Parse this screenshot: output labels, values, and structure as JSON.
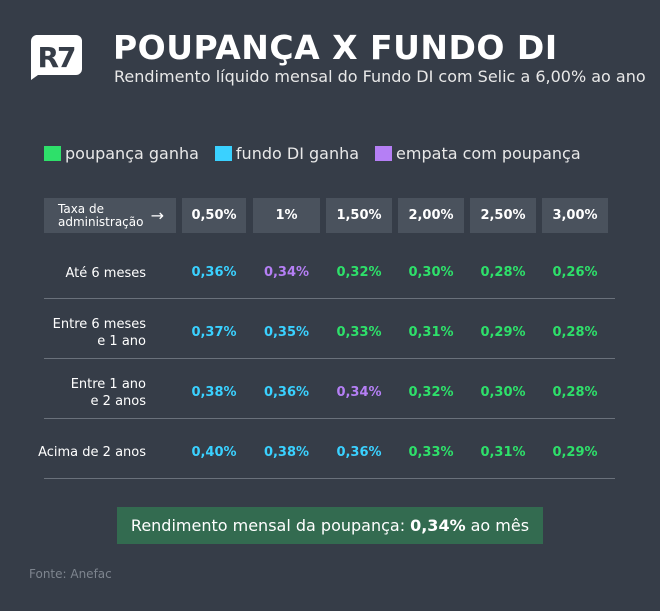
{
  "header": {
    "logo": "R7",
    "title": "POUPANÇA X FUNDO DI",
    "subtitle": "Rendimento líquido mensal do Fundo DI com Selic a 6,00% ao ano"
  },
  "legend": [
    {
      "label": "poupança ganha",
      "color": "#2ee06a"
    },
    {
      "label": "fundo DI ganha",
      "color": "#3ad1ff"
    },
    {
      "label": "empata com poupança",
      "color": "#b57ff5"
    }
  ],
  "table": {
    "corner_label": "Taxa de administração",
    "arrow": "→",
    "columns": [
      "0,50%",
      "1%",
      "1,50%",
      "2,00%",
      "2,50%",
      "3,00%"
    ],
    "rows": [
      {
        "label": "Até 6 meses",
        "cells": [
          {
            "v": "0,36%",
            "s": "fundo"
          },
          {
            "v": "0,34%",
            "s": "empata"
          },
          {
            "v": "0,32%",
            "s": "poupanca"
          },
          {
            "v": "0,30%",
            "s": "poupanca"
          },
          {
            "v": "0,28%",
            "s": "poupanca"
          },
          {
            "v": "0,26%",
            "s": "poupanca"
          }
        ]
      },
      {
        "label": "Entre 6 meses e 1 ano",
        "cells": [
          {
            "v": "0,37%",
            "s": "fundo"
          },
          {
            "v": "0,35%",
            "s": "fundo"
          },
          {
            "v": "0,33%",
            "s": "poupanca"
          },
          {
            "v": "0,31%",
            "s": "poupanca"
          },
          {
            "v": "0,29%",
            "s": "poupanca"
          },
          {
            "v": "0,28%",
            "s": "poupanca"
          }
        ]
      },
      {
        "label": "Entre 1 ano e 2 anos",
        "cells": [
          {
            "v": "0,38%",
            "s": "fundo"
          },
          {
            "v": "0,36%",
            "s": "fundo"
          },
          {
            "v": "0,34%",
            "s": "empata"
          },
          {
            "v": "0,32%",
            "s": "poupanca"
          },
          {
            "v": "0,30%",
            "s": "poupanca"
          },
          {
            "v": "0,28%",
            "s": "poupanca"
          }
        ]
      },
      {
        "label": "Acima de 2 anos",
        "cells": [
          {
            "v": "0,40%",
            "s": "fundo"
          },
          {
            "v": "0,38%",
            "s": "fundo"
          },
          {
            "v": "0,36%",
            "s": "fundo"
          },
          {
            "v": "0,33%",
            "s": "poupanca"
          },
          {
            "v": "0,31%",
            "s": "poupanca"
          },
          {
            "v": "0,29%",
            "s": "poupanca"
          }
        ]
      }
    ]
  },
  "status_colors": {
    "poupanca": "#2ee06a",
    "fundo": "#3ad1ff",
    "empata": "#b57ff5"
  },
  "banner": {
    "prefix": "Rendimento mensal da poupança:",
    "value": "0,34%",
    "suffix": "ao mês"
  },
  "source": "Fonte: Anefac"
}
